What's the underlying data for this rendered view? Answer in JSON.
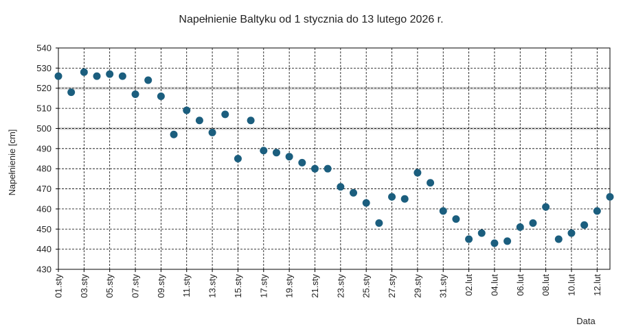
{
  "chart_data": {
    "type": "scatter",
    "title": "Napełnienie Baltyku od 1 stycznia do 13 lutego 2026 r.",
    "xlabel": "Data",
    "ylabel": "Napełnienie [cm]",
    "ylim": [
      430,
      540
    ],
    "yticks": [
      430,
      440,
      450,
      460,
      470,
      480,
      490,
      500,
      510,
      520,
      530,
      540
    ],
    "reference_lines": [
      500,
      520
    ],
    "x_tick_labels": [
      "01.sty",
      "03.sty",
      "05.sty",
      "07.sty",
      "09.sty",
      "11.sty",
      "13.sty",
      "15.sty",
      "17.sty",
      "19.sty",
      "21.sty",
      "23.sty",
      "25.sty",
      "27.sty",
      "29.sty",
      "31.sty",
      "02.lut",
      "04.lut",
      "06.lut",
      "08.lut",
      "10.lut",
      "12.lut"
    ],
    "x": [
      "01.sty",
      "02.sty",
      "03.sty",
      "04.sty",
      "05.sty",
      "06.sty",
      "07.sty",
      "08.sty",
      "09.sty",
      "10.sty",
      "11.sty",
      "12.sty",
      "13.sty",
      "14.sty",
      "15.sty",
      "16.sty",
      "17.sty",
      "18.sty",
      "19.sty",
      "20.sty",
      "21.sty",
      "22.sty",
      "23.sty",
      "24.sty",
      "25.sty",
      "26.sty",
      "27.sty",
      "28.sty",
      "29.sty",
      "30.sty",
      "31.sty",
      "01.lut",
      "02.lut",
      "03.lut",
      "04.lut",
      "05.lut",
      "06.lut",
      "07.lut",
      "08.lut",
      "09.lut",
      "10.lut",
      "11.lut",
      "12.lut",
      "13.lut"
    ],
    "values": [
      526,
      518,
      528,
      526,
      527,
      526,
      517,
      524,
      516,
      497,
      509,
      504,
      498,
      507,
      485,
      504,
      489,
      488,
      486,
      483,
      480,
      480,
      471,
      468,
      463,
      453,
      466,
      465,
      478,
      473,
      459,
      455,
      445,
      448,
      443,
      444,
      451,
      453,
      461,
      445,
      448,
      452,
      459,
      466
    ],
    "grid": true,
    "colors": {
      "point": "#1b5e7e",
      "grid": "#000000",
      "reference": "#d9d9d9"
    }
  }
}
